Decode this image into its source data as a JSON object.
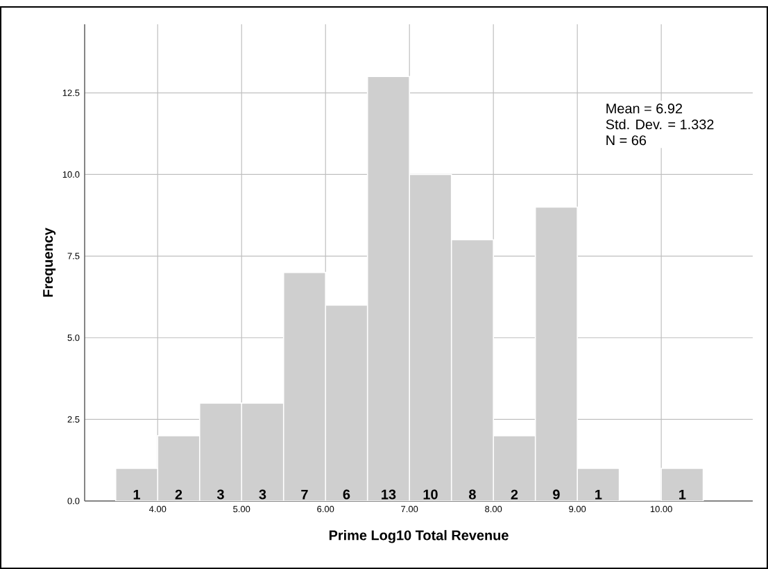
{
  "chart_data": {
    "type": "histogram",
    "xlabel": "Prime Log10 Total Revenue",
    "ylabel": "Frequency",
    "bins": [
      3.5,
      4.0,
      4.5,
      5.0,
      5.5,
      6.0,
      6.5,
      7.0,
      7.5,
      8.0,
      8.5,
      9.0,
      9.5,
      10.0,
      10.5
    ],
    "values": [
      1,
      2,
      3,
      3,
      7,
      6,
      13,
      10,
      8,
      2,
      9,
      1,
      0,
      1
    ],
    "value_labels": [
      "1",
      "2",
      "3",
      "3",
      "7",
      "6",
      "13",
      "10",
      "8",
      "2",
      "9",
      "1",
      null,
      "1"
    ],
    "color": "#cfcfcf",
    "annotations": [
      "Mean = 6.92",
      "Std. Dev. = 1.332",
      "N = 66"
    ],
    "xlim": [
      3.13,
      11.09
    ],
    "ylim": [
      0,
      14.6
    ],
    "xticks": [
      {
        "value": 4,
        "label": "4.00"
      },
      {
        "value": 5,
        "label": "5.00"
      },
      {
        "value": 6,
        "label": "6.00"
      },
      {
        "value": 7,
        "label": "7.00"
      },
      {
        "value": 8,
        "label": "8.00"
      },
      {
        "value": 9,
        "label": "9.00"
      },
      {
        "value": 10,
        "label": "10.00"
      }
    ],
    "yticks": [
      {
        "value": 0,
        "label": "0.0"
      },
      {
        "value": 2.5,
        "label": "2.5"
      },
      {
        "value": 5,
        "label": "5.0"
      },
      {
        "value": 7.5,
        "label": "7.5"
      },
      {
        "value": 10,
        "label": "10.0"
      },
      {
        "value": 12.5,
        "label": "12.5"
      }
    ],
    "grid": true
  }
}
